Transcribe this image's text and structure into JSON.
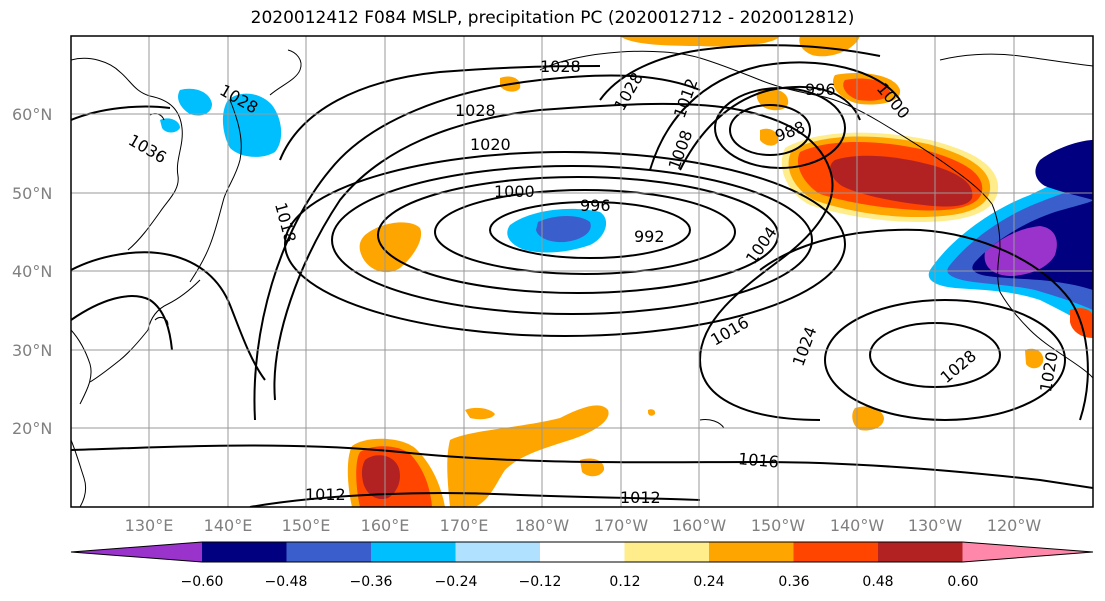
{
  "title": "2020012412 F084 MSLP, precipitation PC (2020012712 - 2020012812)",
  "lat_labels": [
    "60°N",
    "50°N",
    "40°N",
    "30°N",
    "20°N"
  ],
  "lon_labels": [
    "130°E",
    "140°E",
    "150°E",
    "160°E",
    "170°E",
    "180°W",
    "170°W",
    "160°W",
    "150°W",
    "140°W",
    "130°W",
    "120°W"
  ],
  "colorbar": {
    "colors": [
      "#9933cc",
      "#000080",
      "#3a5fcd",
      "#00bfff",
      "#b0e2ff",
      "#ffffff",
      "#ffec8b",
      "#ffa500",
      "#ff4500",
      "#b22222",
      "#ff88aa"
    ],
    "tick_labels": [
      "−0.60",
      "−0.48",
      "−0.36",
      "−0.24",
      "−0.12",
      "0.12",
      "0.24",
      "0.36",
      "0.48",
      "0.60"
    ]
  },
  "isobar_labels": [
    {
      "text": "1028"
    },
    {
      "text": "1028"
    },
    {
      "text": "1020"
    },
    {
      "text": "1000"
    },
    {
      "text": "996"
    },
    {
      "text": "992"
    },
    {
      "text": "1004"
    },
    {
      "text": "1016"
    },
    {
      "text": "1024"
    },
    {
      "text": "1028"
    },
    {
      "text": "1020"
    },
    {
      "text": "1016"
    },
    {
      "text": "1012"
    },
    {
      "text": "1012"
    },
    {
      "text": "1018"
    },
    {
      "text": "1008"
    },
    {
      "text": "1012"
    },
    {
      "text": "988"
    },
    {
      "text": "996"
    },
    {
      "text": "1000"
    },
    {
      "text": "1028"
    },
    {
      "text": "1036"
    },
    {
      "text": "1028"
    }
  ]
}
